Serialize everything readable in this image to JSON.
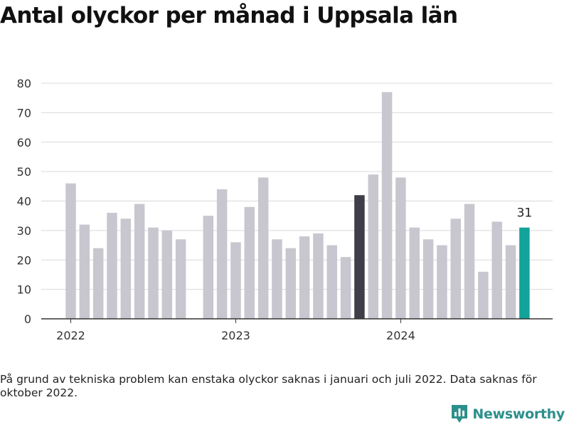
{
  "title": "Antal olyckor per månad i Uppsala län",
  "footnote": "På grund av tekniska problem kan enstaka olyckor saknas i januari och juli 2022. Data saknas för oktober 2022.",
  "brand": "Newsworthy",
  "colors": {
    "default_bar": "#c8c7cf",
    "highlight_bar": "#3f3e48",
    "latest_bar": "#12a39b",
    "gridline": "#d9d9d9",
    "axis": "#333333",
    "brand": "#2c8f8b"
  },
  "chart_data": {
    "type": "bar",
    "title": "Antal olyckor per månad i Uppsala län",
    "xlabel": "",
    "ylabel": "",
    "ylim": [
      0,
      80
    ],
    "yticks": [
      0,
      10,
      20,
      30,
      40,
      50,
      60,
      70,
      80
    ],
    "xtick_labels": [
      {
        "label": "2022",
        "month": "2022-01"
      },
      {
        "label": "2023",
        "month": "2023-01"
      },
      {
        "label": "2024",
        "month": "2024-01"
      }
    ],
    "grid": true,
    "months": [
      "2022-01",
      "2022-02",
      "2022-03",
      "2022-04",
      "2022-05",
      "2022-06",
      "2022-07",
      "2022-08",
      "2022-09",
      "2022-10",
      "2022-11",
      "2022-12",
      "2023-01",
      "2023-02",
      "2023-03",
      "2023-04",
      "2023-05",
      "2023-06",
      "2023-07",
      "2023-08",
      "2023-09",
      "2023-10",
      "2023-11",
      "2023-12",
      "2024-01",
      "2024-02",
      "2024-03",
      "2024-04",
      "2024-05",
      "2024-06",
      "2024-07",
      "2024-08",
      "2024-09",
      "2024-10"
    ],
    "values": [
      46,
      32,
      24,
      36,
      34,
      39,
      31,
      30,
      27,
      null,
      35,
      44,
      26,
      38,
      48,
      27,
      24,
      28,
      29,
      25,
      21,
      42,
      49,
      77,
      48,
      31,
      27,
      25,
      34,
      39,
      16,
      33,
      25,
      31
    ],
    "highlight_months": [
      "2023-10"
    ],
    "latest_month": "2024-10",
    "annotations": [
      {
        "month": "2024-10",
        "text": "31"
      }
    ]
  }
}
